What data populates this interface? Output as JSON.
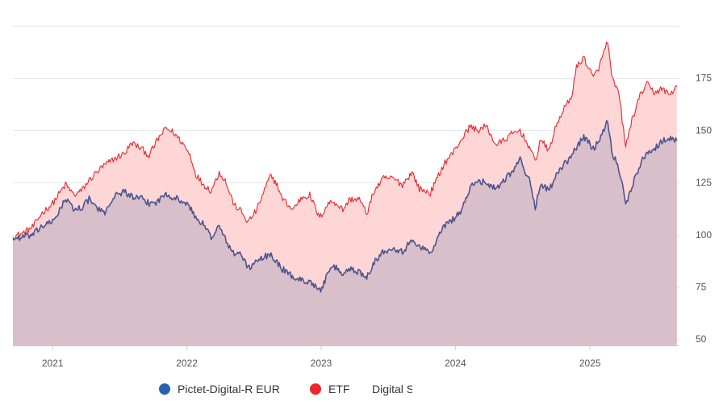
{
  "chart_data": {
    "type": "area",
    "y_axis": {
      "position": "right",
      "ticks": [
        50,
        75,
        100,
        125,
        150,
        175
      ],
      "range": [
        47,
        200
      ],
      "grid": true
    },
    "x_axis": {
      "range": [
        "2020-09-15",
        "2025-09-01"
      ],
      "ticks": [
        {
          "label": "2021",
          "date": "2021-01-01"
        },
        {
          "label": "2022",
          "date": "2022-01-01"
        },
        {
          "label": "2023",
          "date": "2023-01-01"
        },
        {
          "label": "2024",
          "date": "2024-01-01"
        },
        {
          "label": "2025",
          "date": "2025-01-01"
        }
      ]
    },
    "legend": {
      "placement": "bottom"
    },
    "series": [
      {
        "name": "ETF",
        "legend_label": "ETF",
        "color": "#e8262b",
        "fill": "#ffd6d6",
        "points": [
          [
            "2020-09-15",
            99
          ],
          [
            "2020-10-15",
            101
          ],
          [
            "2020-11-10",
            104
          ],
          [
            "2020-12-01",
            110
          ],
          [
            "2021-01-01",
            115
          ],
          [
            "2021-01-20",
            120
          ],
          [
            "2021-02-05",
            124
          ],
          [
            "2021-03-01",
            119
          ],
          [
            "2021-03-20",
            121
          ],
          [
            "2021-04-10",
            126
          ],
          [
            "2021-05-01",
            130
          ],
          [
            "2021-05-20",
            133
          ],
          [
            "2021-06-15",
            136
          ],
          [
            "2021-07-15",
            139
          ],
          [
            "2021-08-05",
            144
          ],
          [
            "2021-09-01",
            141
          ],
          [
            "2021-09-20",
            138
          ],
          [
            "2021-10-15",
            146
          ],
          [
            "2021-11-05",
            151
          ],
          [
            "2021-11-25",
            149
          ],
          [
            "2021-12-20",
            144
          ],
          [
            "2022-01-10",
            138
          ],
          [
            "2022-01-25",
            129
          ],
          [
            "2022-02-10",
            125
          ],
          [
            "2022-03-08",
            121
          ],
          [
            "2022-03-30",
            130
          ],
          [
            "2022-04-15",
            126
          ],
          [
            "2022-05-10",
            114
          ],
          [
            "2022-05-25",
            112
          ],
          [
            "2022-06-16",
            106
          ],
          [
            "2022-07-10",
            112
          ],
          [
            "2022-08-15",
            128
          ],
          [
            "2022-09-01",
            125
          ],
          [
            "2022-09-15",
            118
          ],
          [
            "2022-10-15",
            112
          ],
          [
            "2022-11-10",
            118
          ],
          [
            "2022-12-01",
            119
          ],
          [
            "2022-12-28",
            108
          ],
          [
            "2023-01-20",
            115
          ],
          [
            "2023-02-05",
            116
          ],
          [
            "2023-03-01",
            112
          ],
          [
            "2023-03-20",
            117
          ],
          [
            "2023-04-15",
            117
          ],
          [
            "2023-05-05",
            110
          ],
          [
            "2023-05-25",
            121
          ],
          [
            "2023-06-20",
            127
          ],
          [
            "2023-07-15",
            127
          ],
          [
            "2023-08-10",
            124
          ],
          [
            "2023-09-05",
            130
          ],
          [
            "2023-09-25",
            122
          ],
          [
            "2023-10-25",
            120
          ],
          [
            "2023-11-10",
            126
          ],
          [
            "2023-12-01",
            134
          ],
          [
            "2023-12-28",
            140
          ],
          [
            "2024-01-15",
            145
          ],
          [
            "2024-02-10",
            152
          ],
          [
            "2024-03-01",
            150
          ],
          [
            "2024-03-25",
            152
          ],
          [
            "2024-04-20",
            143
          ],
          [
            "2024-05-10",
            145
          ],
          [
            "2024-06-01",
            148
          ],
          [
            "2024-06-25",
            150
          ],
          [
            "2024-07-20",
            142
          ],
          [
            "2024-08-05",
            135
          ],
          [
            "2024-08-20",
            146
          ],
          [
            "2024-09-10",
            140
          ],
          [
            "2024-10-01",
            152
          ],
          [
            "2024-10-20",
            160
          ],
          [
            "2024-11-10",
            165
          ],
          [
            "2024-11-25",
            180
          ],
          [
            "2024-12-15",
            185
          ],
          [
            "2025-01-10",
            175
          ],
          [
            "2025-01-27",
            181
          ],
          [
            "2025-02-18",
            193
          ],
          [
            "2025-03-01",
            175
          ],
          [
            "2025-03-20",
            168
          ],
          [
            "2025-04-08",
            142
          ],
          [
            "2025-04-25",
            155
          ],
          [
            "2025-05-20",
            168
          ],
          [
            "2025-06-05",
            172
          ],
          [
            "2025-06-25",
            168
          ],
          [
            "2025-07-15",
            170
          ],
          [
            "2025-08-05",
            167
          ],
          [
            "2025-08-25",
            171
          ]
        ]
      },
      {
        "name": "Pictet-Digital-R EUR",
        "legend_label": "Pictet-Digital-R EUR",
        "color": "#4b5490",
        "fill": "#d9bfc9",
        "points": [
          [
            "2020-09-15",
            98
          ],
          [
            "2020-10-15",
            99
          ],
          [
            "2020-11-10",
            100
          ],
          [
            "2020-12-01",
            104
          ],
          [
            "2021-01-01",
            106
          ],
          [
            "2021-01-20",
            112
          ],
          [
            "2021-02-05",
            117
          ],
          [
            "2021-03-01",
            112
          ],
          [
            "2021-03-20",
            113
          ],
          [
            "2021-04-10",
            117
          ],
          [
            "2021-05-01",
            113
          ],
          [
            "2021-05-20",
            110
          ],
          [
            "2021-06-15",
            118
          ],
          [
            "2021-07-15",
            121
          ],
          [
            "2021-08-05",
            118
          ],
          [
            "2021-09-01",
            117
          ],
          [
            "2021-09-20",
            115
          ],
          [
            "2021-10-15",
            116
          ],
          [
            "2021-11-05",
            120
          ],
          [
            "2021-11-25",
            118
          ],
          [
            "2021-12-20",
            116
          ],
          [
            "2022-01-10",
            113
          ],
          [
            "2022-01-25",
            108
          ],
          [
            "2022-02-10",
            106
          ],
          [
            "2022-03-08",
            99
          ],
          [
            "2022-03-30",
            104
          ],
          [
            "2022-04-15",
            98
          ],
          [
            "2022-05-10",
            90
          ],
          [
            "2022-05-25",
            92
          ],
          [
            "2022-06-16",
            84
          ],
          [
            "2022-07-10",
            87
          ],
          [
            "2022-08-15",
            91
          ],
          [
            "2022-09-01",
            87
          ],
          [
            "2022-09-15",
            84
          ],
          [
            "2022-10-15",
            80
          ],
          [
            "2022-11-10",
            78
          ],
          [
            "2022-12-01",
            78
          ],
          [
            "2022-12-28",
            73
          ],
          [
            "2023-01-20",
            81
          ],
          [
            "2023-02-05",
            85
          ],
          [
            "2023-03-01",
            81
          ],
          [
            "2023-03-20",
            84
          ],
          [
            "2023-04-15",
            82
          ],
          [
            "2023-05-05",
            80
          ],
          [
            "2023-05-25",
            87
          ],
          [
            "2023-06-20",
            92
          ],
          [
            "2023-07-15",
            94
          ],
          [
            "2023-08-10",
            92
          ],
          [
            "2023-09-05",
            97
          ],
          [
            "2023-09-25",
            95
          ],
          [
            "2023-10-25",
            91
          ],
          [
            "2023-11-10",
            97
          ],
          [
            "2023-12-01",
            104
          ],
          [
            "2023-12-28",
            108
          ],
          [
            "2024-01-15",
            111
          ],
          [
            "2024-02-10",
            122
          ],
          [
            "2024-03-01",
            126
          ],
          [
            "2024-03-25",
            125
          ],
          [
            "2024-04-20",
            122
          ],
          [
            "2024-05-10",
            126
          ],
          [
            "2024-06-01",
            130
          ],
          [
            "2024-06-25",
            136
          ],
          [
            "2024-07-20",
            126
          ],
          [
            "2024-08-05",
            113
          ],
          [
            "2024-08-20",
            125
          ],
          [
            "2024-09-10",
            121
          ],
          [
            "2024-10-01",
            128
          ],
          [
            "2024-10-20",
            133
          ],
          [
            "2024-11-10",
            137
          ],
          [
            "2024-11-25",
            142
          ],
          [
            "2024-12-15",
            147
          ],
          [
            "2025-01-10",
            141
          ],
          [
            "2025-01-27",
            146
          ],
          [
            "2025-02-18",
            155
          ],
          [
            "2025-03-01",
            140
          ],
          [
            "2025-03-20",
            132
          ],
          [
            "2025-04-08",
            115
          ],
          [
            "2025-04-25",
            123
          ],
          [
            "2025-05-20",
            135
          ],
          [
            "2025-06-05",
            140
          ],
          [
            "2025-06-25",
            141
          ],
          [
            "2025-07-15",
            145
          ],
          [
            "2025-08-05",
            146
          ],
          [
            "2025-08-25",
            145
          ]
        ]
      }
    ]
  },
  "legend": {
    "items": [
      {
        "label": "Pictet-Digital-R EUR",
        "color": "#2a61ad"
      },
      {
        "label": "ETF",
        "color": "#f0262b"
      },
      {
        "label": "Digital S",
        "color": ""
      }
    ]
  }
}
